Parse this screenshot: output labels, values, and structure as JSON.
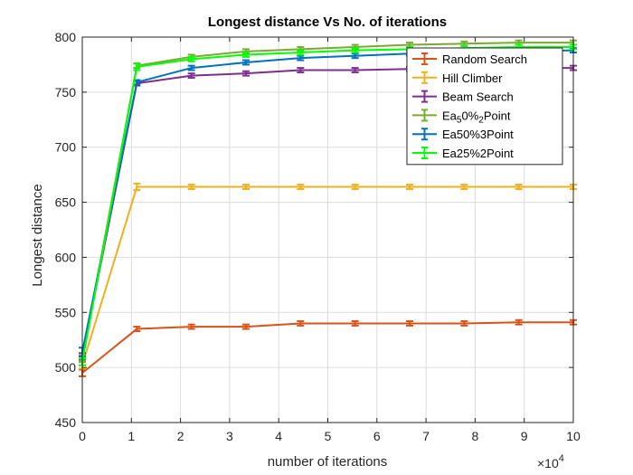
{
  "chart_data": {
    "type": "line",
    "title": "Longest distance Vs No. of iterations",
    "xlabel": "number of iterations",
    "ylabel": "Longest distance",
    "x_multiplier_label": "×10",
    "x_multiplier_exp": "4",
    "xlim": [
      0,
      100000
    ],
    "ylim": [
      450,
      800
    ],
    "x_ticks": [
      0,
      10000,
      20000,
      30000,
      40000,
      50000,
      60000,
      70000,
      80000,
      90000,
      100000
    ],
    "x_tick_labels": [
      "0",
      "1",
      "2",
      "3",
      "4",
      "5",
      "6",
      "7",
      "8",
      "9",
      "10"
    ],
    "y_ticks": [
      450,
      500,
      550,
      600,
      650,
      700,
      750,
      800
    ],
    "y_tick_labels": [
      "450",
      "500",
      "550",
      "600",
      "650",
      "700",
      "750",
      "800"
    ],
    "grid": true,
    "legend_position": "top-right",
    "x": [
      0,
      11111,
      22222,
      33333,
      44444,
      55556,
      66667,
      77778,
      88889,
      100000
    ],
    "series": [
      {
        "name": "Random Search",
        "color": "#D95319",
        "values": [
          495,
          535,
          537,
          537,
          540,
          540,
          540,
          540,
          541,
          541
        ],
        "errors": [
          3,
          2,
          2,
          2,
          2,
          2,
          2,
          2,
          2,
          2
        ]
      },
      {
        "name": "Hill Climber",
        "color": "#EDB120",
        "values": [
          502,
          664,
          664,
          664,
          664,
          664,
          664,
          664,
          664,
          664
        ],
        "errors": [
          3,
          3,
          2,
          2,
          2,
          2,
          2,
          2,
          2,
          2
        ]
      },
      {
        "name": "Beam Search",
        "color": "#7E2F8E",
        "values": [
          510,
          758,
          765,
          767,
          770,
          770,
          771,
          771,
          772,
          772
        ],
        "errors": [
          3,
          2,
          2,
          2,
          2,
          2,
          2,
          2,
          2,
          2
        ]
      },
      {
        "name_parts": [
          "Ea",
          "5",
          "0%",
          "2",
          "Point"
        ],
        "color": "#77AC30",
        "values": [
          508,
          774,
          782,
          787,
          789,
          791,
          793,
          794,
          795,
          795
        ],
        "errors": [
          3,
          2,
          2,
          2,
          2,
          2,
          2,
          2,
          2,
          2
        ]
      },
      {
        "name": "Ea50%3Point",
        "color": "#0072BD",
        "values": [
          514,
          759,
          772,
          777,
          781,
          783,
          785,
          786,
          787,
          788
        ],
        "errors": [
          4,
          2,
          2,
          2,
          2,
          2,
          2,
          2,
          2,
          2
        ]
      },
      {
        "name": "Ea25%2Point",
        "color": "#00FF00",
        "values": [
          505,
          773,
          780,
          784,
          786,
          788,
          789,
          790,
          791,
          791
        ],
        "errors": [
          3,
          3,
          2,
          2,
          2,
          2,
          2,
          2,
          2,
          2
        ]
      }
    ]
  }
}
